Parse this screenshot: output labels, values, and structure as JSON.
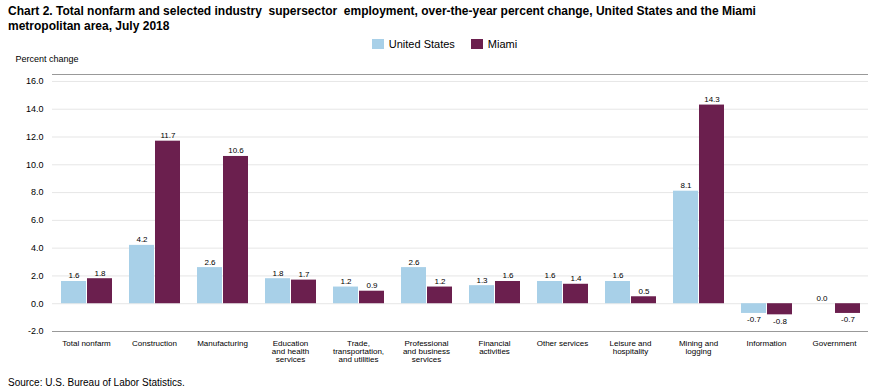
{
  "chart_data": {
    "type": "bar",
    "title": "Chart 2. Total nonfarm and selected industry  supersector  employment, over-the-year percent change, United States and the Miami\nmetropolitan area, July 2018",
    "y_label": "Percent change",
    "source": "Source: U.S. Bureau of Labor Statistics.",
    "categories": [
      "Total nonfarm",
      "Construction",
      "Manufacturing",
      "Education\nand health\nservices",
      "Trade,\ntransportation,\nand utilities",
      "Professional\nand business\nservices",
      "Financial\nactivities",
      "Other services",
      "Leisure and\nhospitality",
      "Mining and\nlogging",
      "Information",
      "Government"
    ],
    "series": [
      {
        "name": "United States",
        "color": "#a8d0e8",
        "values": [
          1.6,
          4.2,
          2.6,
          1.8,
          1.2,
          2.6,
          1.3,
          1.6,
          1.6,
          8.1,
          -0.7,
          0.0
        ],
        "value_labels": [
          "1.6",
          "4.2",
          "2.6",
          "1.8",
          "1.2",
          "2.6",
          "1.3",
          "1.6",
          "1.6",
          "8.1",
          "-0.7",
          "0.0"
        ]
      },
      {
        "name": "Miami",
        "color": "#6b1f4e",
        "values": [
          1.8,
          11.7,
          10.6,
          1.7,
          0.9,
          1.2,
          1.6,
          1.4,
          0.5,
          14.3,
          -0.8,
          -0.7
        ],
        "value_labels": [
          "1.8",
          "11.7",
          "10.6",
          "1.7",
          "0.9",
          "1.2",
          "1.6",
          "1.4",
          "0.5",
          "14.3",
          "-0.8",
          "-0.7"
        ]
      }
    ],
    "ylim": [
      -2.0,
      16.5
    ],
    "yticks": [
      {
        "value": -2.0,
        "label": "-2.0"
      },
      {
        "value": 0.0,
        "label": "0.0"
      },
      {
        "value": 2.0,
        "label": "2.0"
      },
      {
        "value": 4.0,
        "label": "4.0"
      },
      {
        "value": 6.0,
        "label": "6.0"
      },
      {
        "value": 8.0,
        "label": "8.0"
      },
      {
        "value": 10.0,
        "label": "10.0"
      },
      {
        "value": 12.0,
        "label": "12.0"
      },
      {
        "value": 14.0,
        "label": "14.0"
      },
      {
        "value": 16.0,
        "label": "16.0"
      }
    ],
    "grid": true,
    "legend": "top",
    "data_labels": true
  }
}
